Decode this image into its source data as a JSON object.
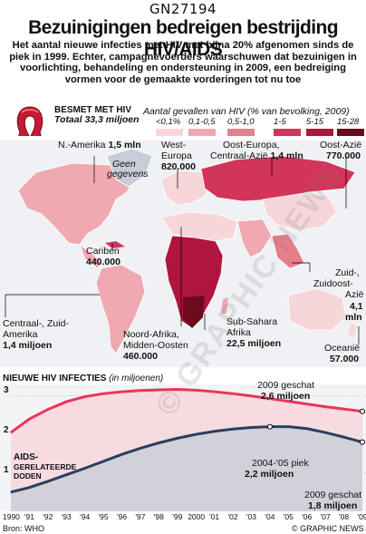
{
  "code": "GN27194",
  "title": "Bezuinigingen bedreigen bestrijding HIV/AIDS",
  "subtitle": "Het aantal nieuwe infecties met HIV  met bijna 20% afgenomen sinds de piek in 1999. Echter, campagnevoerders waarschuwen dat bezuinigen in voorlichting, behandeling en ondersteuning in 2009, een bedreiging vormen voor de gemaakte vorderingen tot nu toe",
  "ribbon_title": "BESMET MET HIV",
  "ribbon_total": "Totaal 33,3 miljoen",
  "legend_title": "Aantal gevallen van HIV (% van bevolking, 2009)",
  "legend": [
    {
      "label": "<0,1%",
      "color": "#f7d6d9"
    },
    {
      "label": "0,1-0,5",
      "color": "#f0a9b1"
    },
    {
      "label": "0,5-1,0",
      "color": "#e57f8c"
    },
    {
      "label": "1-5",
      "color": "#d2355a"
    },
    {
      "label": "5-15",
      "color": "#b0163d"
    },
    {
      "label": "15-28",
      "color": "#6c0a1f"
    }
  ],
  "regions": {
    "na": {
      "name": "N.-Amerika",
      "value": "1,5 mln"
    },
    "we": {
      "name1": "West-",
      "name2": "Europa",
      "value": "820.000"
    },
    "ee": {
      "name1": "Oost-Europa,",
      "name2": "Centraal-Azië",
      "value": "1,4 mln"
    },
    "ea": {
      "name": "Oost-Azië",
      "value": "770.000"
    },
    "gr": {
      "name1": "Geen",
      "name2": "gegevens"
    },
    "car": {
      "name": "Cariben",
      "value": "440.000"
    },
    "sea": {
      "name1": "Zuid-,",
      "name2": "Zuidoost-",
      "name3": "Azië",
      "value1": "4,1",
      "value2": "mln"
    },
    "la": {
      "name1": "Centraal-, Zuid-",
      "name2": "Amerika",
      "value": "1,4 miljoen"
    },
    "na2": {
      "name1": "Noord-Afrika,",
      "name2": "Midden-Oosten",
      "value": "460.000"
    },
    "ssa": {
      "name1": "Sub-Sahara",
      "name2": "Afrika",
      "value": "22,5 miljoen"
    },
    "oc": {
      "name": "Oceanië",
      "value": "57.000"
    }
  },
  "chart_title": "NIEUWE HIV INFECTIES",
  "chart_unit": "(in miljoenen)",
  "chart_data": {
    "type": "line",
    "x": [
      1990,
      1991,
      1992,
      1993,
      1994,
      1995,
      1996,
      1997,
      1998,
      1999,
      2000,
      2001,
      2002,
      2003,
      2004,
      2005,
      2006,
      2007,
      2008,
      2009
    ],
    "xticks": [
      "1990",
      "'91",
      "'92",
      "'93",
      "'94",
      "'95",
      "'96",
      "'97",
      "'98",
      "'99",
      "2000",
      "'01",
      "'02",
      "'03",
      "'04",
      "'05",
      "'06",
      "'07",
      "'08",
      "'09"
    ],
    "yticks": [
      "3",
      "2",
      "1"
    ],
    "ylim": [
      0,
      3.3
    ],
    "series": [
      {
        "name": "",
        "color": "#e8355a",
        "values": [
          2.05,
          2.4,
          2.65,
          2.85,
          2.98,
          3.06,
          3.11,
          3.14,
          3.16,
          3.17,
          3.15,
          3.11,
          3.06,
          3.0,
          2.93,
          2.86,
          2.79,
          2.72,
          2.66,
          2.6
        ]
      },
      {
        "name": "AIDS-GERELATEERDE DODEN",
        "color": "#2a3f5c",
        "values": [
          0.5,
          0.62,
          0.78,
          0.95,
          1.12,
          1.3,
          1.48,
          1.64,
          1.78,
          1.9,
          2.0,
          2.08,
          2.14,
          2.18,
          2.2,
          2.2,
          2.15,
          2.05,
          1.93,
          1.8
        ]
      }
    ],
    "annotations": [
      {
        "line1": "2009 geschat",
        "line2": "2,6 miljoen"
      },
      {
        "line1": "2004-'05 piek",
        "line2": "2,2 miljoen"
      },
      {
        "line1": "2009 geschat",
        "line2": "1,8 miljoen"
      }
    ]
  },
  "aids_label1": "AIDS-",
  "aids_label2": "GERELATEERDE",
  "aids_label3": "DODEN",
  "source": "Bron: WHO",
  "credit": "© GRAPHIC NEWS",
  "watermark": "© GRAPHIC NEWS"
}
